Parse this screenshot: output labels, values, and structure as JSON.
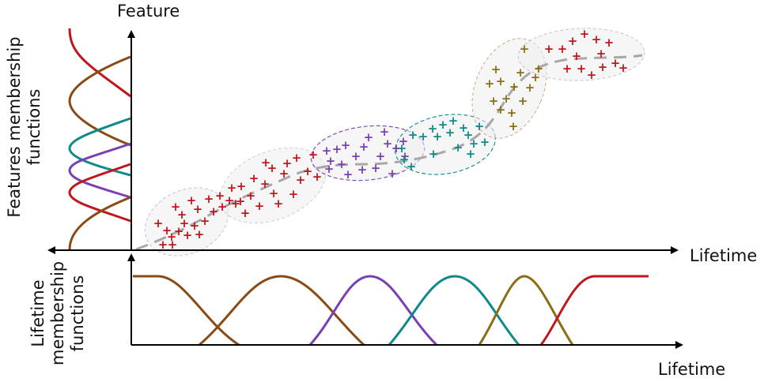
{
  "labels": {
    "feature_axis": "Feature",
    "lifetime_axis_top": "Lifetime",
    "lifetime_axis_bottom": "Lifetime",
    "features_membership_line1": "Features membership",
    "features_membership_line2": "functions",
    "lifetime_membership_line1": "Lifetime",
    "lifetime_membership_line2": "membership",
    "lifetime_membership_line3": "functions"
  },
  "colors": {
    "red": "#c0161c",
    "brown": "#8a4a14",
    "teal": "#0f8a8a",
    "purple": "#7a3fb5",
    "olive": "#8b6d14",
    "trend": "#a8a8a8",
    "axis": "#000000"
  },
  "markers": {
    "symbol": "+",
    "clusters": [
      {
        "name": "cluster-1",
        "color": "red"
      },
      {
        "name": "cluster-2",
        "color": "red"
      },
      {
        "name": "cluster-3",
        "color": "purple"
      },
      {
        "name": "cluster-4",
        "color": "teal"
      },
      {
        "name": "cluster-5",
        "color": "olive"
      },
      {
        "name": "cluster-6",
        "color": "red"
      }
    ]
  }
}
